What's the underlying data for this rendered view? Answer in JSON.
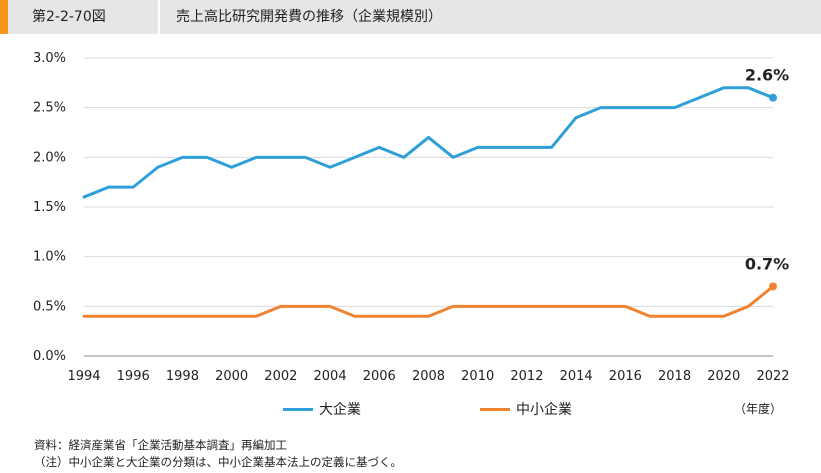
{
  "header": {
    "figure_number": "第2-2-70図",
    "title": "売上高比研究開発費の推移（企業規模別）"
  },
  "colors": {
    "large": "#2e9fd8",
    "sme": "#f08330",
    "accent": "#f7941d",
    "grid": "#d9d9d9"
  },
  "chart_data": {
    "type": "line",
    "x": [
      1994,
      1995,
      1996,
      1997,
      1998,
      1999,
      2000,
      2001,
      2002,
      2003,
      2004,
      2005,
      2006,
      2007,
      2008,
      2009,
      2010,
      2011,
      2012,
      2013,
      2014,
      2015,
      2016,
      2017,
      2018,
      2019,
      2020,
      2021,
      2022
    ],
    "x_tick_labels": [
      "1994",
      "1996",
      "1998",
      "2000",
      "2002",
      "2004",
      "2006",
      "2008",
      "2010",
      "2012",
      "2014",
      "2016",
      "2018",
      "2020",
      "2022"
    ],
    "y_tick_labels": [
      "0.0%",
      "0.5%",
      "1.0%",
      "1.5%",
      "2.0%",
      "2.5%",
      "3.0%"
    ],
    "ylim": [
      0,
      3.0
    ],
    "y_unit": "%",
    "grid": "horizontal",
    "legend_position": "bottom",
    "x_unit_label": "（年度）",
    "series": [
      {
        "name": "大企業",
        "values": [
          1.6,
          1.7,
          1.7,
          1.9,
          2.0,
          2.0,
          1.9,
          2.0,
          2.0,
          2.0,
          1.9,
          2.0,
          2.1,
          2.0,
          2.2,
          2.0,
          2.1,
          2.1,
          2.1,
          2.1,
          2.4,
          2.5,
          2.5,
          2.5,
          2.5,
          2.6,
          2.7,
          2.7,
          2.6
        ],
        "end_label": "2.6%"
      },
      {
        "name": "中小企業",
        "values": [
          0.4,
          0.4,
          0.4,
          0.4,
          0.4,
          0.4,
          0.4,
          0.4,
          0.5,
          0.5,
          0.5,
          0.4,
          0.4,
          0.4,
          0.4,
          0.5,
          0.5,
          0.5,
          0.5,
          0.5,
          0.5,
          0.5,
          0.5,
          0.4,
          0.4,
          0.4,
          0.4,
          0.5,
          0.7
        ],
        "end_label": "0.7%"
      }
    ]
  },
  "notes": {
    "source": "資料：経済産業省「企業活動基本調査」再編加工",
    "note": "（注）中小企業と大企業の分類は、中小企業基本法上の定義に基づく。"
  }
}
